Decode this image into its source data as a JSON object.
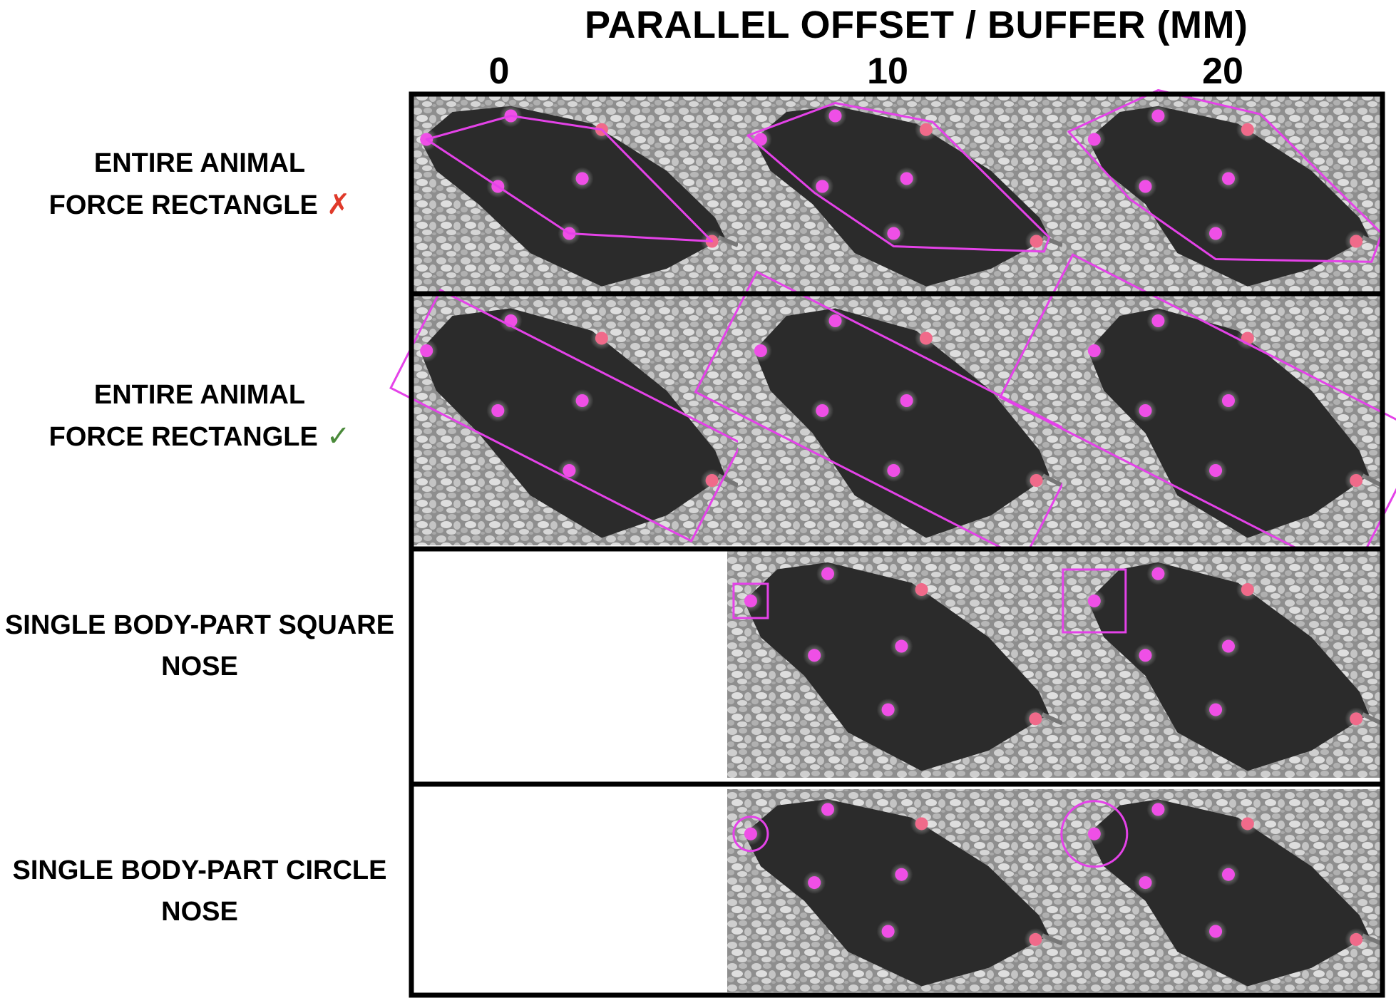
{
  "header": {
    "title": "PARALLEL OFFSET / BUFFER (MM)",
    "columns": [
      "0",
      "10",
      "20"
    ]
  },
  "rows": [
    {
      "line1": "ENTIRE ANIMAL",
      "line2": "FORCE RECTANGLE",
      "mark": "✗"
    },
    {
      "line1": "ENTIRE ANIMAL",
      "line2": "FORCE RECTANGLE",
      "mark": "✓"
    },
    {
      "line1": "SINGLE BODY-PART SQUARE",
      "line2": "NOSE",
      "mark": ""
    },
    {
      "line1": "SINGLE BODY-PART CIRCLE",
      "line2": "NOSE",
      "mark": ""
    }
  ],
  "colors": {
    "roi": "#e442e8",
    "keypoint": "#ef4fe6",
    "tailpoint": "#f06a8a",
    "mouse": "#2b2b2b",
    "bedding": "#9a9a9a",
    "grid": "#000000"
  }
}
